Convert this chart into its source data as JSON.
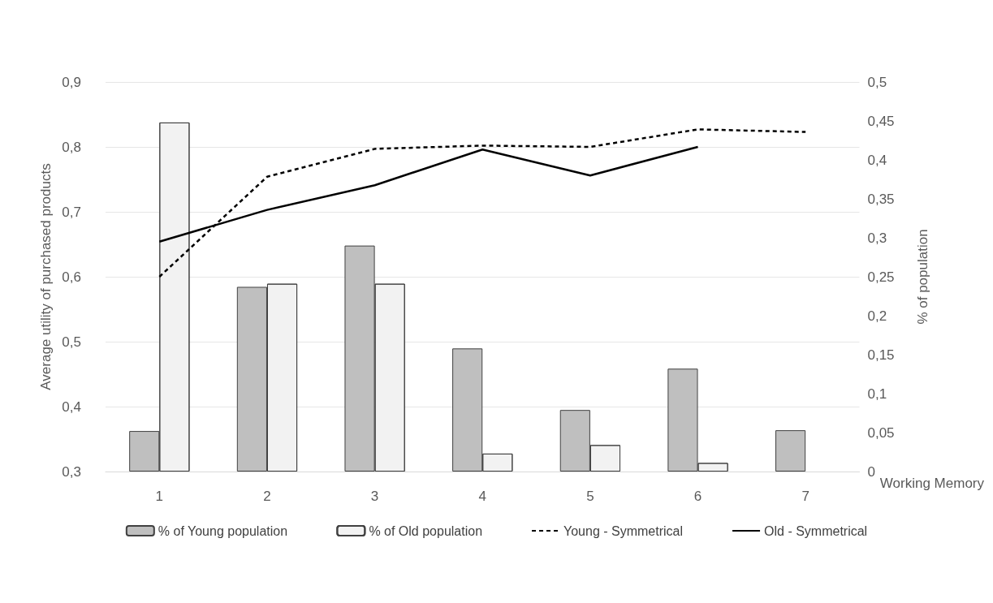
{
  "chart_data": {
    "type": "bar",
    "categories": [
      "1",
      "2",
      "3",
      "4",
      "5",
      "6",
      "7"
    ],
    "xlabel": "Working Memory",
    "ylabel": "Average utility of purchased products",
    "y2label": "% of population",
    "series": [
      {
        "name": "% of Young population",
        "axis": "y2",
        "color": "#bfbfbf",
        "values": [
          0.052,
          0.237,
          0.29,
          0.158,
          0.079,
          0.132,
          0.053
        ]
      },
      {
        "name": "% of Old population",
        "axis": "y2",
        "color": "#f2f2f2",
        "values": [
          0.448,
          0.241,
          0.241,
          0.023,
          0.034,
          0.011,
          null
        ]
      },
      {
        "name": "Young - Symmetrical",
        "type": "line",
        "color": "#000000",
        "line_style": "dashed",
        "values": [
          0.6,
          0.754,
          0.797,
          0.802,
          0.8,
          0.827,
          0.823
        ]
      },
      {
        "name": "Old - Symmetrical",
        "type": "line",
        "color": "#000000",
        "line_style": "solid",
        "values": [
          0.654,
          0.703,
          0.741,
          0.796,
          0.756,
          0.8,
          null
        ]
      }
    ],
    "ylim": [
      0.3,
      0.9
    ],
    "yticks": [
      {
        "value": 0.3,
        "label": "0,3"
      },
      {
        "value": 0.4,
        "label": "0,4"
      },
      {
        "value": 0.5,
        "label": "0,5"
      },
      {
        "value": 0.6,
        "label": "0,6"
      },
      {
        "value": 0.7,
        "label": "0,7"
      },
      {
        "value": 0.8,
        "label": "0,8"
      },
      {
        "value": 0.9,
        "label": "0,9"
      }
    ],
    "y2lim": [
      0,
      0.5
    ],
    "y2ticks": [
      0,
      {
        "value": 0.05,
        "label": "0,05"
      },
      {
        "value": 0.1,
        "label": "0,1"
      },
      {
        "value": 0.15,
        "label": "0,15"
      },
      {
        "value": 0.2,
        "label": "0,2"
      },
      {
        "value": 0.25,
        "label": "0,25"
      },
      {
        "value": 0.3,
        "label": "0,3"
      },
      {
        "value": 0.35,
        "label": "0,35"
      },
      {
        "value": 0.4,
        "label": "0,4"
      },
      {
        "value": 0.45,
        "label": "0,45"
      },
      {
        "value": 0.5,
        "label": "0,5"
      }
    ],
    "grid": "y",
    "legend": "bottom",
    "marker": "none"
  }
}
